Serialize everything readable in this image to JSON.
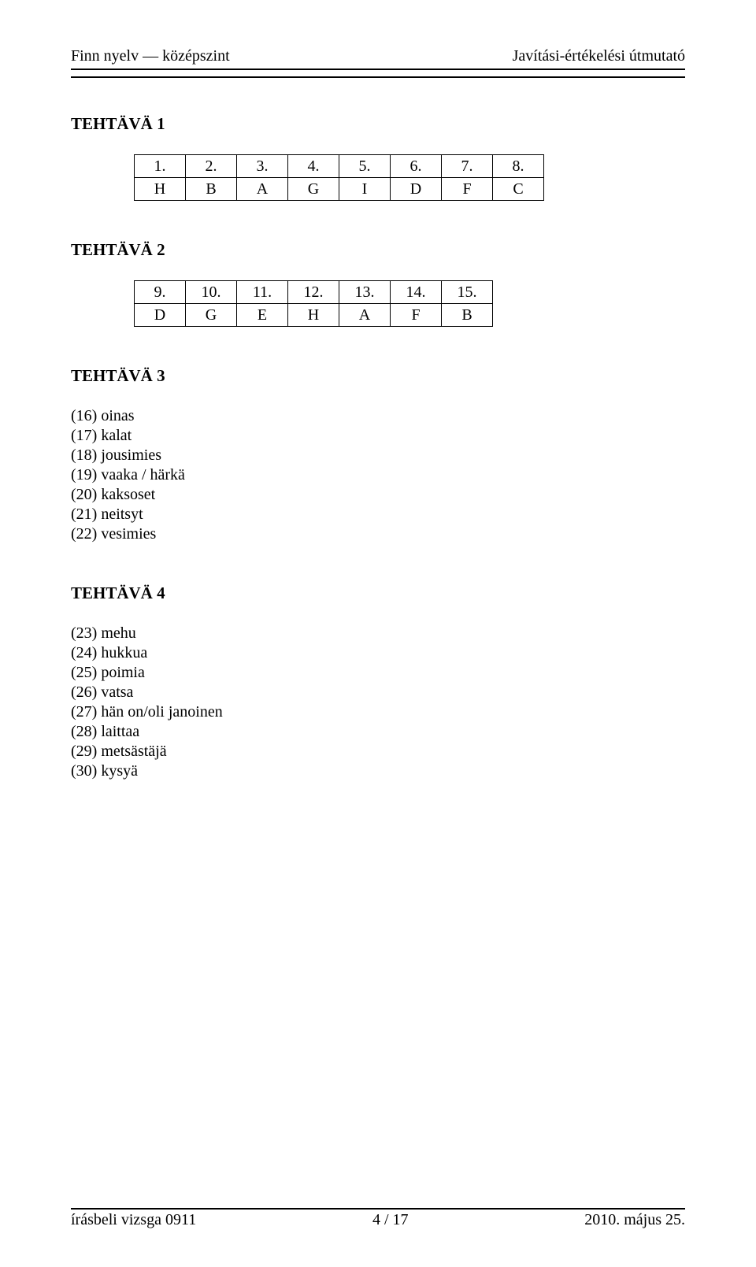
{
  "header": {
    "left": "Finn nyelv — középszint",
    "right": "Javítási-értékelési útmutató"
  },
  "section1_title": "TEHTÄVÄ 1",
  "section2_title": "TEHTÄVÄ 2",
  "section3_title": "TEHTÄVÄ 3",
  "section4_title": "TEHTÄVÄ 4",
  "table1": {
    "nums": [
      "1.",
      "2.",
      "3.",
      "4.",
      "5.",
      "6.",
      "7.",
      "8."
    ],
    "letters": [
      "H",
      "B",
      "A",
      "G",
      "I",
      "D",
      "F",
      "C"
    ]
  },
  "table2": {
    "nums": [
      "9.",
      "10.",
      "11.",
      "12.",
      "13.",
      "14.",
      "15."
    ],
    "letters": [
      "D",
      "G",
      "E",
      "H",
      "A",
      "F",
      "B"
    ]
  },
  "section3": {
    "l16": "(16) oinas",
    "l17": "(17) kalat",
    "l18": "(18) jousimies",
    "l19": "(19) vaaka / härkä",
    "l20": "(20) kaksoset",
    "l21": "(21) neitsyt",
    "l22": "(22) vesimies"
  },
  "section4": {
    "l23": "(23) mehu",
    "l24": "(24) hukkua",
    "l25": "(25) poimia",
    "l26": "(26) vatsa",
    "l27": "(27) hän on/oli janoinen",
    "l28": "(28) laittaa",
    "l29": "(29) metsästäjä",
    "l30": "(30) kysyä"
  },
  "footer": {
    "left": "írásbeli vizsga 0911",
    "center": "4 / 17",
    "right": "2010. május 25."
  }
}
